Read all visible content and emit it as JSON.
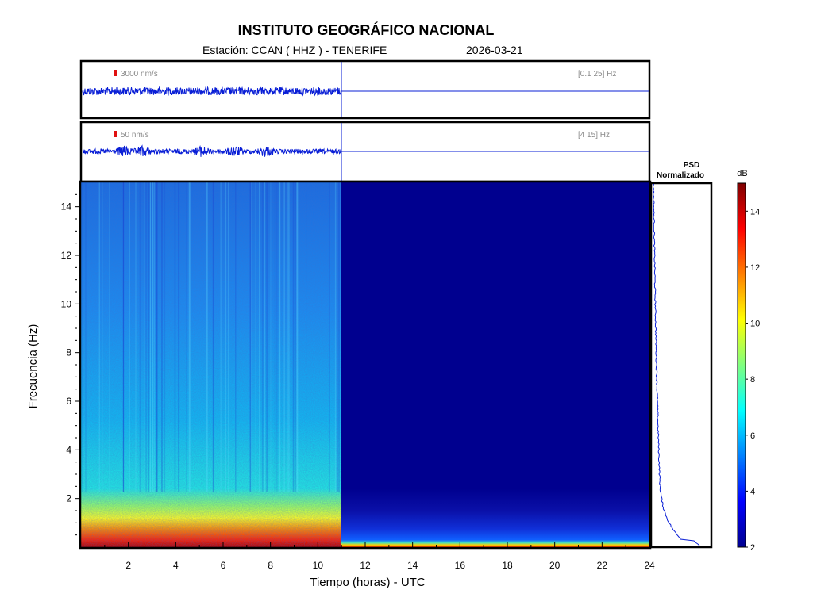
{
  "header": {
    "title": "INSTITUTO GEOGRÁFICO NACIONAL",
    "station": "Estación:  CCAN ( HHZ ) - TENERIFE",
    "date": "2026-03-21"
  },
  "colors": {
    "trace": "#0a1fd6",
    "frame": "#000000",
    "scale_bar": "#e01010",
    "spectrogram_empty": "#00008f"
  },
  "chart_data": [
    {
      "type": "line",
      "name": "trace-broadband",
      "scale_label": "3000 nm/s",
      "band_label": "[0.1 25] Hz",
      "xlim": [
        0,
        24
      ],
      "data_until_hour": 11,
      "events_hours": []
    },
    {
      "type": "line",
      "name": "trace-filtered",
      "scale_label": "50 nm/s",
      "band_label": "[4 15] Hz",
      "xlim": [
        0,
        24
      ],
      "data_until_hour": 11,
      "events_hours": [
        1.8,
        2.6,
        5.1,
        6.5,
        7.8
      ]
    },
    {
      "type": "heatmap",
      "name": "spectrogram",
      "xlabel": "Tiempo (horas) - UTC",
      "ylabel": "Frecuencia  (Hz)",
      "xlim": [
        0,
        24
      ],
      "ylim": [
        0,
        15
      ],
      "xticks": [
        2,
        4,
        6,
        8,
        10,
        12,
        14,
        16,
        18,
        20,
        22,
        24
      ],
      "yticks": [
        2,
        4,
        6,
        8,
        10,
        12,
        14
      ],
      "data_until_hour": 11,
      "colorbar": {
        "label": "dB",
        "range": [
          2,
          15
        ],
        "ticks": [
          2,
          4,
          6,
          8,
          10,
          12,
          14
        ]
      }
    },
    {
      "type": "line",
      "name": "psd",
      "title_line1": "PSD",
      "title_line2": "Normalizado"
    }
  ]
}
